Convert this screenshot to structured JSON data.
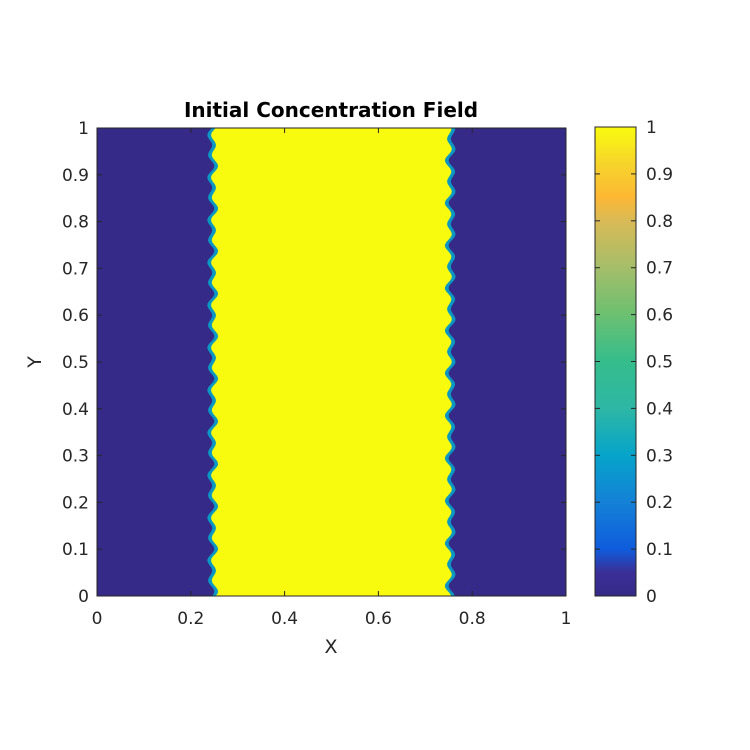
{
  "chart_data": {
    "type": "heatmap",
    "title": "Initial Concentration Field",
    "xlabel": "X",
    "ylabel": "Y",
    "xlim": [
      0,
      1
    ],
    "ylim": [
      0,
      1
    ],
    "x_ticks": [
      "0",
      "0.2",
      "0.4",
      "0.6",
      "0.8",
      "1"
    ],
    "y_ticks": [
      "0",
      "0.1",
      "0.2",
      "0.3",
      "0.4",
      "0.5",
      "0.6",
      "0.7",
      "0.8",
      "0.9",
      "1"
    ],
    "colorbar": {
      "colormap": "parula",
      "clim": [
        0,
        1
      ],
      "ticks": [
        "0",
        "0.1",
        "0.2",
        "0.3",
        "0.4",
        "0.5",
        "0.6",
        "0.7",
        "0.8",
        "0.9",
        "1"
      ]
    },
    "field": {
      "description_values": "concentration is 1 inside a central band and 0 outside; interfaces are slightly wavy",
      "low_value": 0,
      "high_value": 1,
      "band_left_x": 0.25,
      "band_right_x": 0.75,
      "interface_wave_amplitude": 0.006,
      "interface_wave_count": 22
    },
    "grid": false,
    "colors": {
      "low": "#352a87",
      "high": "#f9fb0e"
    }
  }
}
